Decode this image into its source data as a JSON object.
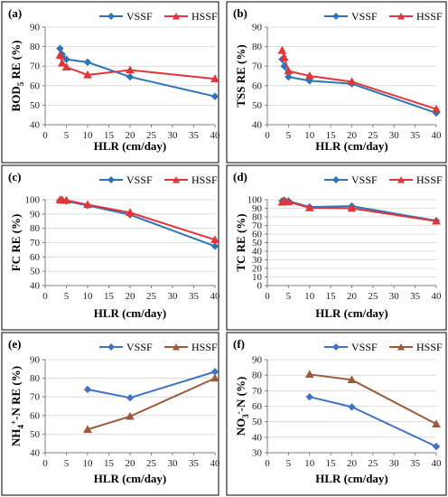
{
  "chart_data": [
    {
      "id": "a",
      "panel_label": "(a)",
      "type": "line",
      "xlabel": "HLR (cm/day)",
      "ylabel_parts": [
        "BOD",
        "5",
        " RE (%)"
      ],
      "xlim": [
        0,
        40
      ],
      "ylim": [
        40,
        90
      ],
      "xticks": [
        0,
        5,
        10,
        15,
        20,
        25,
        30,
        35,
        40
      ],
      "yticks": [
        40,
        50,
        60,
        70,
        80,
        90
      ],
      "series": [
        {
          "name": "VSSF",
          "color": "#2e75b6",
          "marker": "diamond",
          "x": [
            3.5,
            4,
            5,
            10,
            20,
            40
          ],
          "y": [
            79,
            76,
            73.5,
            72,
            64.5,
            54.5
          ]
        },
        {
          "name": "HSSF",
          "color": "#e0363a",
          "marker": "triangle",
          "x": [
            3.5,
            4,
            5,
            10,
            20,
            40
          ],
          "y": [
            75.5,
            71.5,
            69.5,
            65.5,
            68,
            63.5
          ]
        }
      ]
    },
    {
      "id": "b",
      "panel_label": "(b)",
      "type": "line",
      "xlabel": "HLR (cm/day)",
      "ylabel_parts": [
        "TSS RE (%)"
      ],
      "xlim": [
        0,
        40
      ],
      "ylim": [
        40,
        90
      ],
      "xticks": [
        0,
        5,
        10,
        15,
        20,
        25,
        30,
        35,
        40
      ],
      "yticks": [
        40,
        50,
        60,
        70,
        80,
        90
      ],
      "series": [
        {
          "name": "VSSF",
          "color": "#2e75b6",
          "marker": "diamond",
          "x": [
            3.5,
            4,
            5,
            10,
            20,
            40
          ],
          "y": [
            73.5,
            70,
            64.5,
            62.5,
            61,
            46
          ]
        },
        {
          "name": "HSSF",
          "color": "#e0363a",
          "marker": "triangle",
          "x": [
            3.5,
            4,
            5,
            10,
            20,
            40
          ],
          "y": [
            78,
            74.5,
            67.5,
            65,
            62,
            48
          ]
        }
      ]
    },
    {
      "id": "c",
      "panel_label": "(c)",
      "type": "line",
      "xlabel": "HLR (cm/day)",
      "ylabel_parts": [
        "FC RE (%)"
      ],
      "xlim": [
        0,
        40
      ],
      "ylim": [
        40,
        100
      ],
      "xticks": [
        0,
        5,
        10,
        15,
        20,
        25,
        30,
        35,
        40
      ],
      "yticks": [
        40,
        50,
        60,
        70,
        80,
        90,
        100
      ],
      "series": [
        {
          "name": "VSSF",
          "color": "#2e75b6",
          "marker": "diamond",
          "x": [
            3.5,
            4,
            5,
            10,
            20,
            40
          ],
          "y": [
            99.5,
            99.5,
            99,
            96,
            89.5,
            67.5
          ]
        },
        {
          "name": "HSSF",
          "color": "#e0363a",
          "marker": "triangle",
          "x": [
            3.5,
            4,
            5,
            10,
            20,
            40
          ],
          "y": [
            99.8,
            99.8,
            99.5,
            96.5,
            91,
            72
          ]
        }
      ]
    },
    {
      "id": "d",
      "panel_label": "(d)",
      "type": "line",
      "xlabel": "HLR (cm/day)",
      "ylabel_parts": [
        "TC RE (%)"
      ],
      "xlim": [
        0,
        40
      ],
      "ylim": [
        0,
        100
      ],
      "xticks": [
        0,
        5,
        10,
        15,
        20,
        25,
        30,
        35,
        40
      ],
      "yticks": [
        0,
        10,
        20,
        30,
        40,
        50,
        60,
        70,
        80,
        90,
        100
      ],
      "series": [
        {
          "name": "VSSF",
          "color": "#2e75b6",
          "marker": "diamond",
          "x": [
            3.5,
            4,
            5,
            10,
            20,
            40
          ],
          "y": [
            98.5,
            99.5,
            98.5,
            91.5,
            92.5,
            75.5
          ]
        },
        {
          "name": "HSSF",
          "color": "#e0363a",
          "marker": "triangle",
          "x": [
            3.5,
            4,
            5,
            10,
            20,
            40
          ],
          "y": [
            97,
            98,
            97.5,
            90.5,
            90,
            75
          ]
        }
      ]
    },
    {
      "id": "e",
      "panel_label": "(e)",
      "type": "line",
      "xlabel": "HLR (cm/day)",
      "ylabel_parts": [
        "NH",
        "4",
        "+",
        "-N RE (%)"
      ],
      "xlim": [
        0,
        40
      ],
      "ylim": [
        40,
        90
      ],
      "xticks": [
        0,
        5,
        10,
        15,
        20,
        25,
        30,
        35,
        40
      ],
      "yticks": [
        40,
        50,
        60,
        70,
        80,
        90
      ],
      "series": [
        {
          "name": "VSSF",
          "color": "#4472c4",
          "marker": "diamond",
          "x": [
            10,
            20,
            40
          ],
          "y": [
            74,
            69.5,
            83.5
          ]
        },
        {
          "name": "HSSF",
          "color": "#9c5a3c",
          "marker": "triangle",
          "x": [
            10,
            20,
            40
          ],
          "y": [
            52.5,
            59.5,
            80
          ]
        }
      ]
    },
    {
      "id": "f",
      "panel_label": "(f)",
      "type": "line",
      "xlabel": "HLR (cm/day)",
      "ylabel_parts": [
        "NO",
        "3",
        "-",
        "-N (%)"
      ],
      "xlim": [
        0,
        40
      ],
      "ylim": [
        30,
        90
      ],
      "xticks": [
        0,
        5,
        10,
        15,
        20,
        25,
        30,
        35,
        40
      ],
      "yticks": [
        30,
        40,
        50,
        60,
        70,
        80,
        90
      ],
      "series": [
        {
          "name": "VSSF",
          "color": "#4472c4",
          "marker": "diamond",
          "x": [
            10,
            20,
            40
          ],
          "y": [
            66,
            59.5,
            34
          ]
        },
        {
          "name": "HSSF",
          "color": "#9c5a3c",
          "marker": "triangle",
          "x": [
            10,
            20,
            40
          ],
          "y": [
            80.5,
            77,
            48.5
          ]
        }
      ]
    }
  ]
}
